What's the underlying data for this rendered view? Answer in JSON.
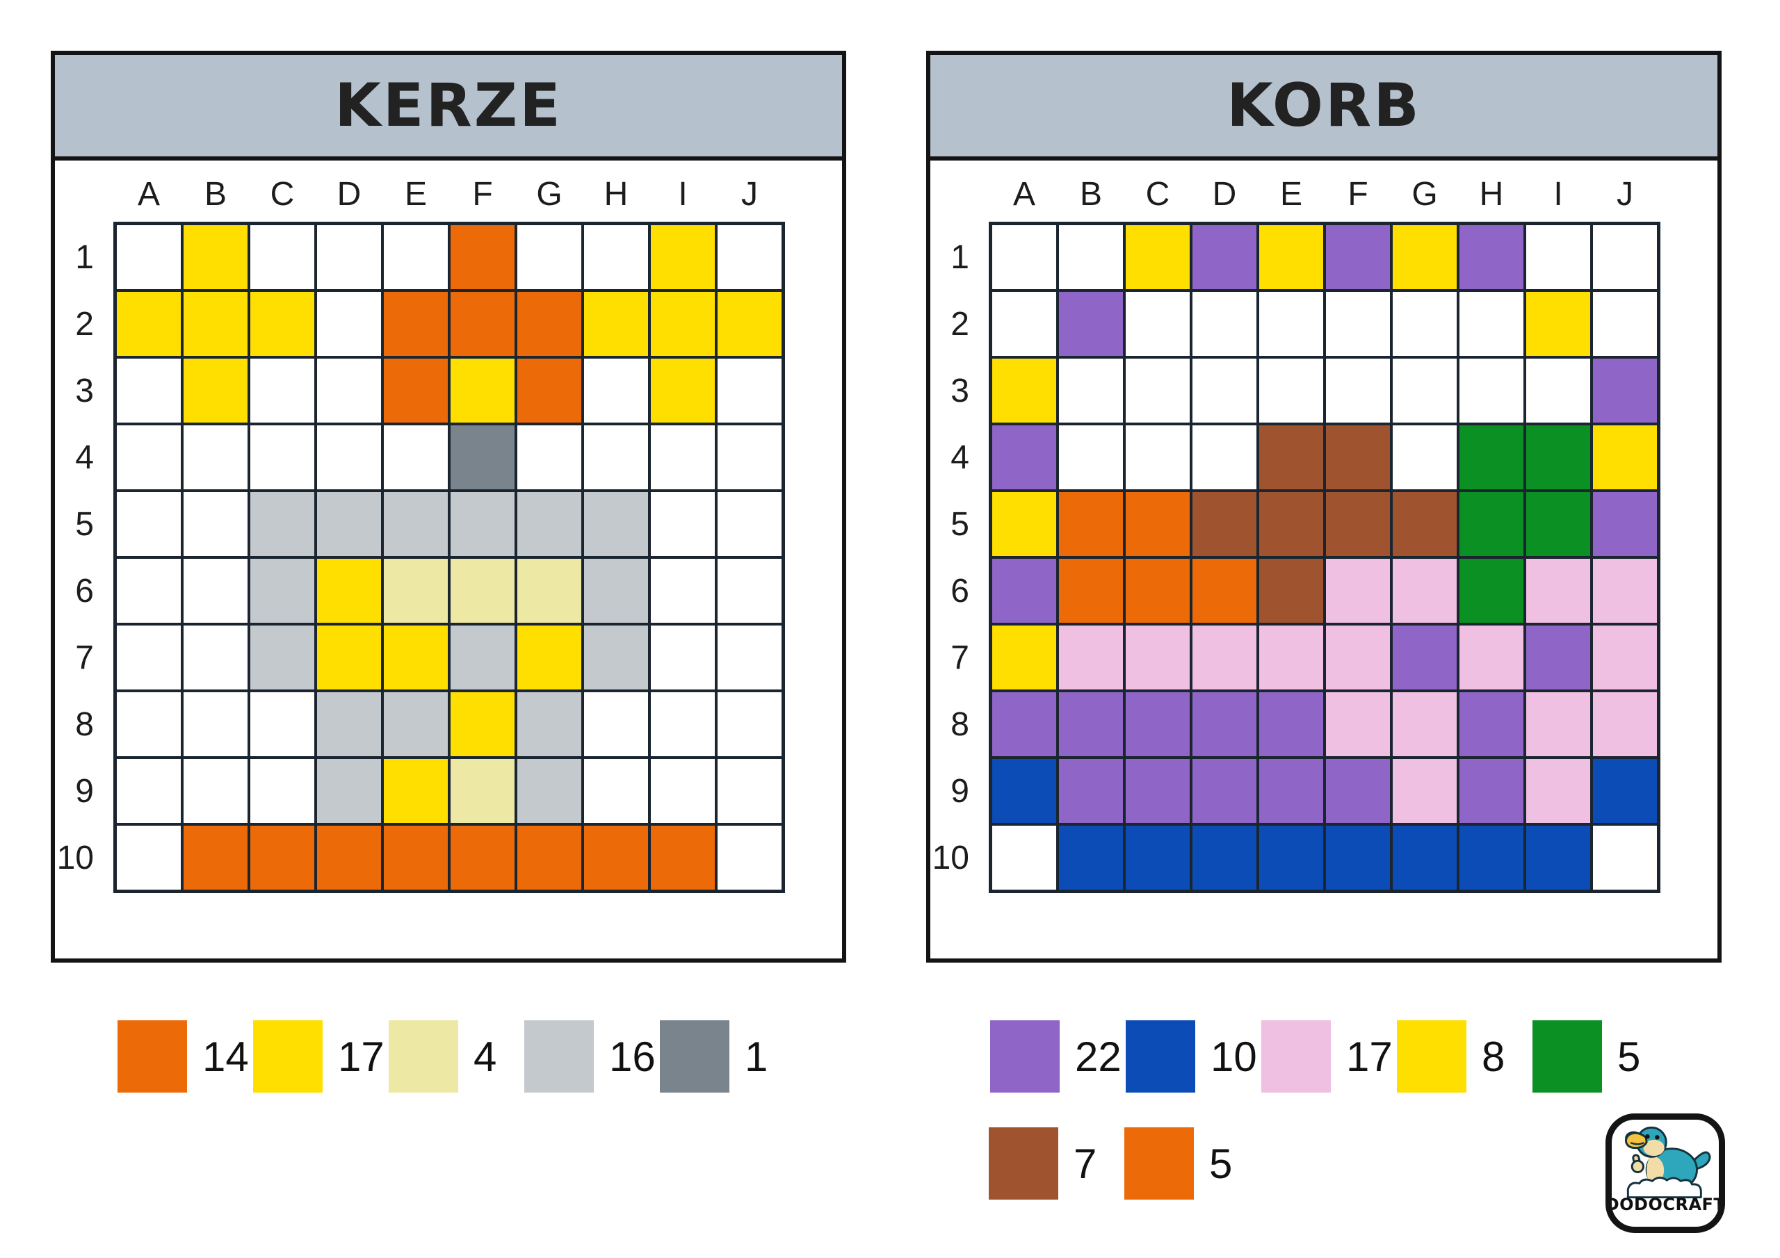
{
  "panels": [
    {
      "id": "kerze",
      "title": "KERZE",
      "columns": [
        "A",
        "B",
        "C",
        "D",
        "E",
        "F",
        "G",
        "H",
        "I",
        "J"
      ],
      "rows": [
        "1",
        "2",
        "3",
        "4",
        "5",
        "6",
        "7",
        "8",
        "9",
        "10"
      ],
      "palette": {
        ".": "#FFFFFF",
        "O": "#EC6A07",
        "Y": "#FFDF00",
        "P": "#EDE8A3",
        "L": "#C4C9CE",
        "D": "#79848D"
      },
      "color_names": {
        ".": "white",
        "O": "orange",
        "Y": "yellow",
        "P": "pale-yellow",
        "L": "light-gray",
        "D": "dark-gray"
      },
      "cells": [
        ".Y...O..Y.",
        "YYY.OOOYYY",
        ".Y..OYO.Y.",
        ".....D....",
        "..LLLLLL..",
        "..LYPPPL..",
        "..LYYLYL..",
        "...LLYL...",
        "...LYPL...",
        ".OOOOOOOO."
      ],
      "legend_rows": [
        [
          {
            "code": "O",
            "count": "14"
          },
          {
            "code": "Y",
            "count": "17"
          },
          {
            "code": "P",
            "count": "4"
          },
          {
            "code": "L",
            "count": "16"
          },
          {
            "code": "D",
            "count": "1"
          }
        ]
      ]
    },
    {
      "id": "korb",
      "title": "KORB",
      "columns": [
        "A",
        "B",
        "C",
        "D",
        "E",
        "F",
        "G",
        "H",
        "I",
        "J"
      ],
      "rows": [
        "1",
        "2",
        "3",
        "4",
        "5",
        "6",
        "7",
        "8",
        "9",
        "10"
      ],
      "palette": {
        ".": "#FFFFFF",
        "U": "#8F66C8",
        "B": "#0B4CB7",
        "K": "#EFC0E2",
        "Y": "#FFDF00",
        "G": "#0A9023",
        "N": "#A0532F",
        "O": "#EC6A07"
      },
      "color_names": {
        ".": "white",
        "U": "purple",
        "B": "blue",
        "K": "pink",
        "Y": "yellow",
        "G": "green",
        "N": "brown",
        "O": "orange"
      },
      "cells": [
        "..YUYUYU..",
        ".U......Y.",
        "Y........U",
        "U...NN.GGY",
        "YOONNNNGGU",
        "UOOONKKGKK",
        "YKKKKKUKUK",
        "UUUUUKKUKK",
        "BUUUUUKUKB",
        ".BBBBBBBB."
      ],
      "legend_rows": [
        [
          {
            "code": "U",
            "count": "22"
          },
          {
            "code": "B",
            "count": "10"
          },
          {
            "code": "K",
            "count": "17"
          },
          {
            "code": "Y",
            "count": "8"
          },
          {
            "code": "G",
            "count": "5"
          }
        ],
        [
          {
            "code": "N",
            "count": "7"
          },
          {
            "code": "O",
            "count": "5"
          }
        ]
      ]
    }
  ],
  "logo": {
    "text": "DODOCRAFT",
    "bird_color": "#2EA7BC",
    "face_color": "#F2DCA8",
    "beak_color": "#F4C340",
    "beak_tip_color": "#3C5A7D"
  },
  "style_colors": {
    "header_bg": "#B5C2CD",
    "grid_line": "#1B2530",
    "panel_border": "#141414"
  }
}
